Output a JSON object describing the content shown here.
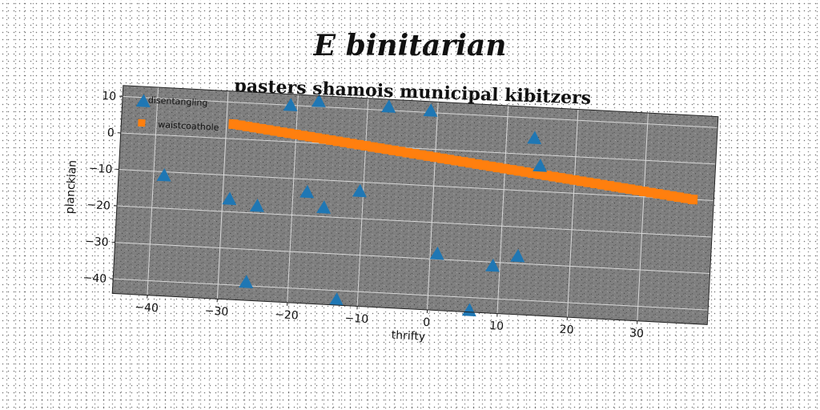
{
  "page": {
    "suptitle": "E binitarian"
  },
  "chart_data": {
    "type": "scatter",
    "title": "pasters shamois municipal kibitzers",
    "xlabel": "thrifty",
    "ylabel": "planckian",
    "xlim": [
      -45,
      40
    ],
    "ylim": [
      -44,
      13
    ],
    "xticks": [
      -40,
      -30,
      -20,
      -10,
      0,
      10,
      20,
      30
    ],
    "yticks": [
      10,
      0,
      -10,
      -20,
      -30,
      -40
    ],
    "grid": true,
    "legend_position": "top-left",
    "rotation_deg": 3,
    "plot_background": "#808080",
    "series": [
      {
        "name": "disentangling",
        "marker": "triangle",
        "color": "#1f77b4",
        "points": [
          [
            -42,
            9
          ],
          [
            -38.5,
            -11
          ],
          [
            -29,
            -16.5
          ],
          [
            -26,
            -39
          ],
          [
            -25,
            -18
          ],
          [
            -21,
            10
          ],
          [
            -18,
            -13.5
          ],
          [
            -17,
            11.5
          ],
          [
            -15.5,
            -17.5
          ],
          [
            -13,
            -42.5
          ],
          [
            -10.5,
            -12.5
          ],
          [
            -7,
            11
          ],
          [
            -1,
            10.5
          ],
          [
            1,
            -28.5
          ],
          [
            6,
            -43.5
          ],
          [
            9,
            -31
          ],
          [
            12.5,
            -28
          ],
          [
            14,
            4.5
          ],
          [
            15,
            -3
          ]
        ]
      },
      {
        "name": "waistcoathole",
        "marker": "square",
        "color": "#ff7f0e",
        "x_start": -29,
        "x_end": 37,
        "y_start": 4,
        "y_end": -10,
        "count": 67
      }
    ]
  }
}
